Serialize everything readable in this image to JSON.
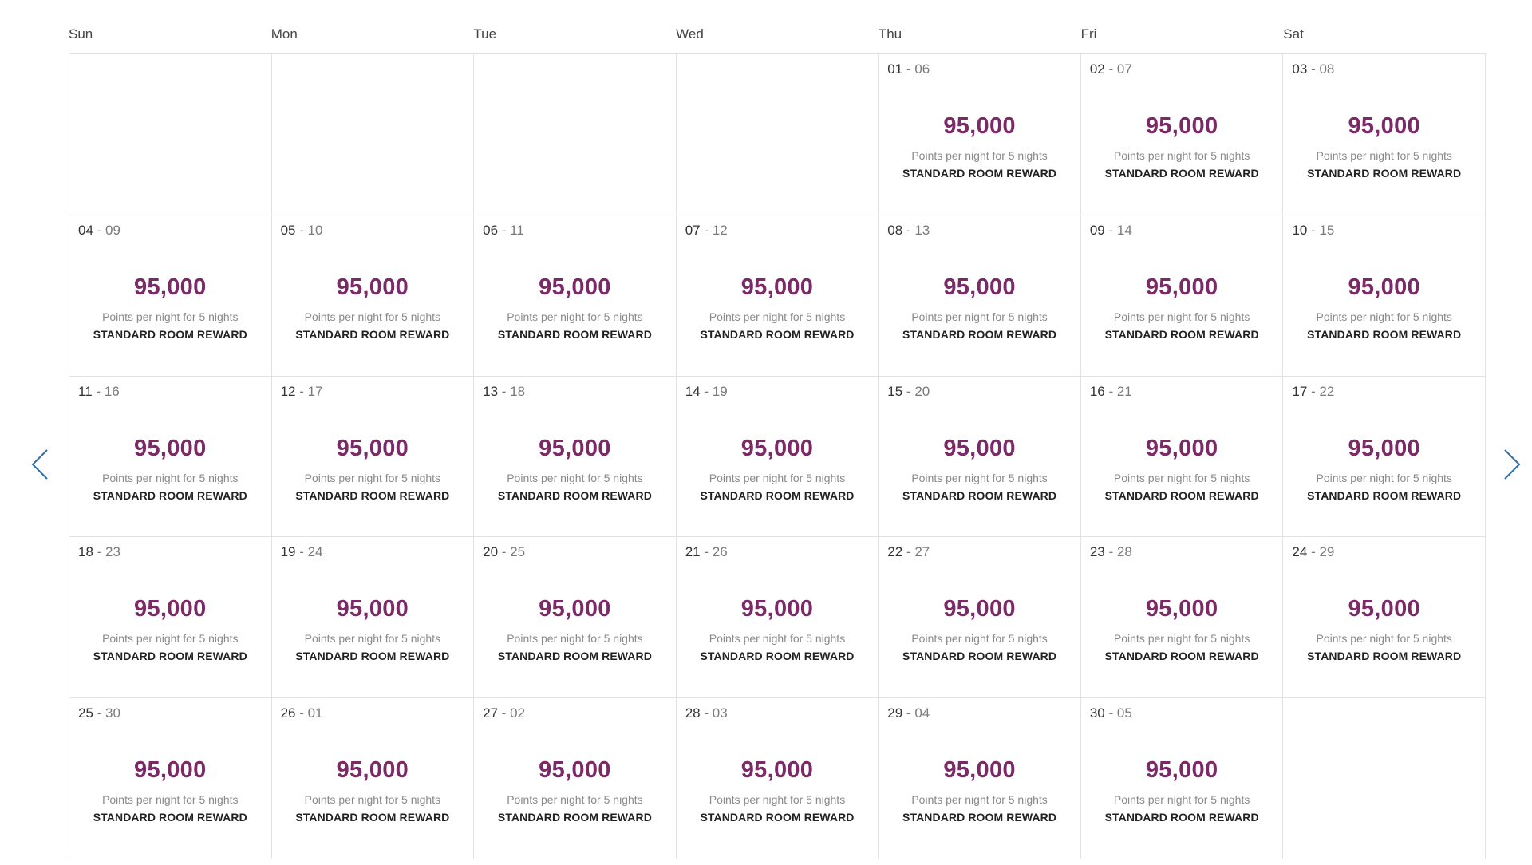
{
  "weekdays": [
    "Sun",
    "Mon",
    "Tue",
    "Wed",
    "Thu",
    "Fri",
    "Sat"
  ],
  "colors": {
    "points": "#7b2a67",
    "arrow": "#2f6da3",
    "border": "#e2e2e2"
  },
  "navigation": {
    "prev_icon": "chevron-left-icon",
    "next_icon": "chevron-right-icon"
  },
  "weeks": [
    [
      null,
      null,
      null,
      null,
      {
        "start": "01",
        "sep": " - ",
        "end": "06",
        "points": "95,000",
        "caption": "Points per night for 5 nights",
        "reward": "STANDARD ROOM REWARD"
      },
      {
        "start": "02",
        "sep": " - ",
        "end": "07",
        "points": "95,000",
        "caption": "Points per night for 5 nights",
        "reward": "STANDARD ROOM REWARD"
      },
      {
        "start": "03",
        "sep": " - ",
        "end": "08",
        "points": "95,000",
        "caption": "Points per night for 5 nights",
        "reward": "STANDARD ROOM REWARD"
      }
    ],
    [
      {
        "start": "04",
        "sep": " - ",
        "end": "09",
        "points": "95,000",
        "caption": "Points per night for 5 nights",
        "reward": "STANDARD ROOM REWARD"
      },
      {
        "start": "05",
        "sep": " - ",
        "end": "10",
        "points": "95,000",
        "caption": "Points per night for 5 nights",
        "reward": "STANDARD ROOM REWARD"
      },
      {
        "start": "06",
        "sep": " - ",
        "end": "11",
        "points": "95,000",
        "caption": "Points per night for 5 nights",
        "reward": "STANDARD ROOM REWARD"
      },
      {
        "start": "07",
        "sep": " - ",
        "end": "12",
        "points": "95,000",
        "caption": "Points per night for 5 nights",
        "reward": "STANDARD ROOM REWARD"
      },
      {
        "start": "08",
        "sep": " - ",
        "end": "13",
        "points": "95,000",
        "caption": "Points per night for 5 nights",
        "reward": "STANDARD ROOM REWARD"
      },
      {
        "start": "09",
        "sep": " - ",
        "end": "14",
        "points": "95,000",
        "caption": "Points per night for 5 nights",
        "reward": "STANDARD ROOM REWARD"
      },
      {
        "start": "10",
        "sep": " - ",
        "end": "15",
        "points": "95,000",
        "caption": "Points per night for 5 nights",
        "reward": "STANDARD ROOM REWARD"
      }
    ],
    [
      {
        "start": "11",
        "sep": " - ",
        "end": "16",
        "points": "95,000",
        "caption": "Points per night for 5 nights",
        "reward": "STANDARD ROOM REWARD"
      },
      {
        "start": "12",
        "sep": " - ",
        "end": "17",
        "points": "95,000",
        "caption": "Points per night for 5 nights",
        "reward": "STANDARD ROOM REWARD"
      },
      {
        "start": "13",
        "sep": " - ",
        "end": "18",
        "points": "95,000",
        "caption": "Points per night for 5 nights",
        "reward": "STANDARD ROOM REWARD"
      },
      {
        "start": "14",
        "sep": " - ",
        "end": "19",
        "points": "95,000",
        "caption": "Points per night for 5 nights",
        "reward": "STANDARD ROOM REWARD"
      },
      {
        "start": "15",
        "sep": " - ",
        "end": "20",
        "points": "95,000",
        "caption": "Points per night for 5 nights",
        "reward": "STANDARD ROOM REWARD"
      },
      {
        "start": "16",
        "sep": " - ",
        "end": "21",
        "points": "95,000",
        "caption": "Points per night for 5 nights",
        "reward": "STANDARD ROOM REWARD"
      },
      {
        "start": "17",
        "sep": " - ",
        "end": "22",
        "points": "95,000",
        "caption": "Points per night for 5 nights",
        "reward": "STANDARD ROOM REWARD"
      }
    ],
    [
      {
        "start": "18",
        "sep": " - ",
        "end": "23",
        "points": "95,000",
        "caption": "Points per night for 5 nights",
        "reward": "STANDARD ROOM REWARD"
      },
      {
        "start": "19",
        "sep": " - ",
        "end": "24",
        "points": "95,000",
        "caption": "Points per night for 5 nights",
        "reward": "STANDARD ROOM REWARD"
      },
      {
        "start": "20",
        "sep": " - ",
        "end": "25",
        "points": "95,000",
        "caption": "Points per night for 5 nights",
        "reward": "STANDARD ROOM REWARD"
      },
      {
        "start": "21",
        "sep": " - ",
        "end": "26",
        "points": "95,000",
        "caption": "Points per night for 5 nights",
        "reward": "STANDARD ROOM REWARD"
      },
      {
        "start": "22",
        "sep": " - ",
        "end": "27",
        "points": "95,000",
        "caption": "Points per night for 5 nights",
        "reward": "STANDARD ROOM REWARD"
      },
      {
        "start": "23",
        "sep": " - ",
        "end": "28",
        "points": "95,000",
        "caption": "Points per night for 5 nights",
        "reward": "STANDARD ROOM REWARD"
      },
      {
        "start": "24",
        "sep": " - ",
        "end": "29",
        "points": "95,000",
        "caption": "Points per night for 5 nights",
        "reward": "STANDARD ROOM REWARD"
      }
    ],
    [
      {
        "start": "25",
        "sep": " - ",
        "end": "30",
        "points": "95,000",
        "caption": "Points per night for 5 nights",
        "reward": "STANDARD ROOM REWARD"
      },
      {
        "start": "26",
        "sep": " - ",
        "end": "01",
        "points": "95,000",
        "caption": "Points per night for 5 nights",
        "reward": "STANDARD ROOM REWARD"
      },
      {
        "start": "27",
        "sep": " - ",
        "end": "02",
        "points": "95,000",
        "caption": "Points per night for 5 nights",
        "reward": "STANDARD ROOM REWARD"
      },
      {
        "start": "28",
        "sep": " - ",
        "end": "03",
        "points": "95,000",
        "caption": "Points per night for 5 nights",
        "reward": "STANDARD ROOM REWARD"
      },
      {
        "start": "29",
        "sep": " - ",
        "end": "04",
        "points": "95,000",
        "caption": "Points per night for 5 nights",
        "reward": "STANDARD ROOM REWARD"
      },
      {
        "start": "30",
        "sep": " - ",
        "end": "05",
        "points": "95,000",
        "caption": "Points per night for 5 nights",
        "reward": "STANDARD ROOM REWARD"
      },
      null
    ]
  ]
}
